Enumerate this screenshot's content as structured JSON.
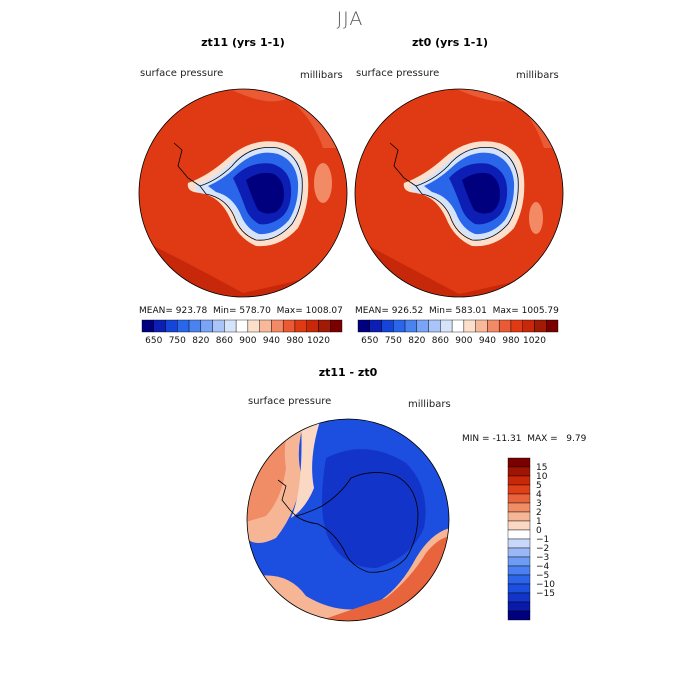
{
  "figure": {
    "title": "JJA"
  },
  "colors": {
    "pressure_scale": [
      "#00007f",
      "#0c1eb3",
      "#1444d8",
      "#2a66ea",
      "#4a82f0",
      "#7aa4f5",
      "#a8c4f8",
      "#d6e4fb",
      "#ffffff",
      "#fde0cc",
      "#f8b89a",
      "#f28a66",
      "#ea5a34",
      "#e03a14",
      "#c8280a",
      "#a01a06",
      "#7a0000"
    ],
    "diff_scale": [
      "#00007f",
      "#0a1aa8",
      "#1234c8",
      "#1c4ee0",
      "#2c64ea",
      "#4a80f0",
      "#6e9cf4",
      "#9ab8f6",
      "#c8d8fa",
      "#ffffff",
      "#fbd8c4",
      "#f6b696",
      "#f08c66",
      "#e8643c",
      "#e04018",
      "#c82808",
      "#a01404",
      "#7a0000"
    ],
    "antarctica_outline": "#000000"
  },
  "plots": {
    "left": {
      "title": "zt11 (yrs 1-1)",
      "variable": "surface pressure",
      "units": "millibars",
      "stats": {
        "mean_label": "MEAN=",
        "mean": "923.78",
        "min_label": "Min=",
        "min": "578.70",
        "max_label": "Max=",
        "max": "1008.07"
      }
    },
    "right": {
      "title": "zt0 (yrs 1-1)",
      "variable": "surface pressure",
      "units": "millibars",
      "stats": {
        "mean_label": "MEAN=",
        "mean": "926.52",
        "min_label": "Min=",
        "min": "583.01",
        "max_label": "Max=",
        "max": "1005.79"
      }
    },
    "diff": {
      "title": "zt11 - zt0",
      "variable": "surface pressure",
      "units": "millibars",
      "stats": {
        "min_label": "MIN =",
        "min": "-11.31",
        "max_label": "MAX =",
        "max": "9.79"
      }
    }
  },
  "chart_data": [
    {
      "type": "heatmap",
      "projection": "south polar stereographic",
      "title": "zt11 (yrs 1-1)",
      "variable": "surface pressure",
      "units": "millibars",
      "colorbar_levels": [
        650,
        700,
        750,
        800,
        820,
        840,
        860,
        880,
        900,
        920,
        940,
        960,
        980,
        1000,
        1020
      ],
      "colorbar_tick_labels": [
        "650",
        "750",
        "820",
        "860",
        "900",
        "940",
        "980",
        "1020"
      ],
      "mean": 923.78,
      "min": 578.7,
      "max": 1008.07
    },
    {
      "type": "heatmap",
      "projection": "south polar stereographic",
      "title": "zt0 (yrs 1-1)",
      "variable": "surface pressure",
      "units": "millibars",
      "colorbar_levels": [
        650,
        700,
        750,
        800,
        820,
        840,
        860,
        880,
        900,
        920,
        940,
        960,
        980,
        1000,
        1020
      ],
      "colorbar_tick_labels": [
        "650",
        "750",
        "820",
        "860",
        "900",
        "940",
        "980",
        "1020"
      ],
      "mean": 926.52,
      "min": 583.01,
      "max": 1005.79
    },
    {
      "type": "heatmap",
      "projection": "south polar stereographic",
      "title": "zt11 - zt0",
      "variable": "surface pressure",
      "units": "millibars",
      "colorbar_levels": [
        -15,
        -10,
        -5,
        -4,
        -3,
        -2,
        -1,
        0,
        1,
        2,
        3,
        4,
        5,
        10,
        15
      ],
      "colorbar_tick_labels": [
        "15",
        "10",
        "5",
        "4",
        "3",
        "2",
        "1",
        "0",
        "−1",
        "−2",
        "−3",
        "−4",
        "−5",
        "−10",
        "−15"
      ],
      "min": -11.31,
      "max": 9.79
    }
  ]
}
